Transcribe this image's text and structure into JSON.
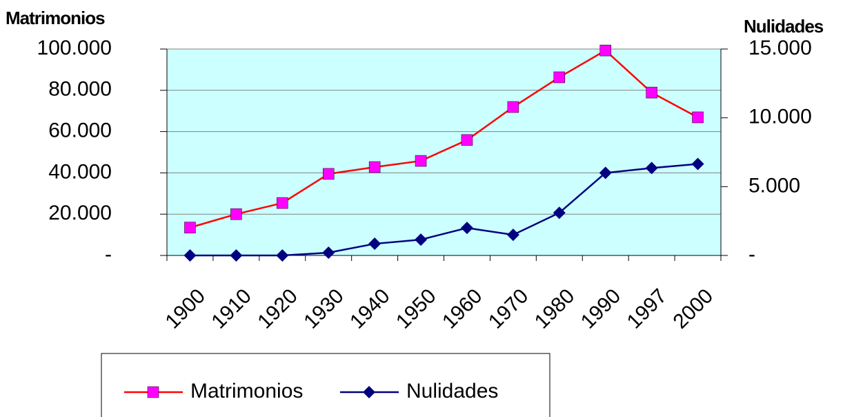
{
  "chart_data": {
    "type": "line",
    "y_label": "Matrimonios",
    "y2_label": "Nulidades",
    "categories": [
      "1900",
      "1910",
      "1920",
      "1930",
      "1940",
      "1950",
      "1960",
      "1970",
      "1980",
      "1990",
      "1997",
      "2000"
    ],
    "series": [
      {
        "name": "Matrimonios",
        "color": "#ff0000",
        "marker_color": "#ff00ff",
        "marker": "square",
        "values": [
          13500,
          20000,
          25400,
          39500,
          42800,
          45800,
          55900,
          71900,
          86300,
          99300,
          78900,
          66900
        ]
      },
      {
        "name": "Nulidades",
        "color": "#000080",
        "marker_color": "#000080",
        "marker": "diamond",
        "axis": "y2",
        "values": [
          0,
          0,
          0,
          200,
          850,
          1150,
          2000,
          1500,
          3100,
          6000,
          6350,
          6650
        ]
      }
    ],
    "ylim": [
      0,
      100000
    ],
    "yticks": [
      {
        "value": 0,
        "label": "-"
      },
      {
        "value": 20000,
        "label": "20.000"
      },
      {
        "value": 40000,
        "label": "40.000"
      },
      {
        "value": 60000,
        "label": "60.000"
      },
      {
        "value": 80000,
        "label": "80.000"
      },
      {
        "value": 100000,
        "label": "100.000"
      }
    ],
    "y2lim": [
      0,
      15000
    ],
    "y2ticks": [
      {
        "value": 0,
        "label": "-"
      },
      {
        "value": 5000,
        "label": "5.000"
      },
      {
        "value": 10000,
        "label": "10.000"
      },
      {
        "value": 15000,
        "label": "15.000"
      }
    ],
    "grid": true,
    "plot_background": "#ccffff",
    "legend": "bottom"
  }
}
